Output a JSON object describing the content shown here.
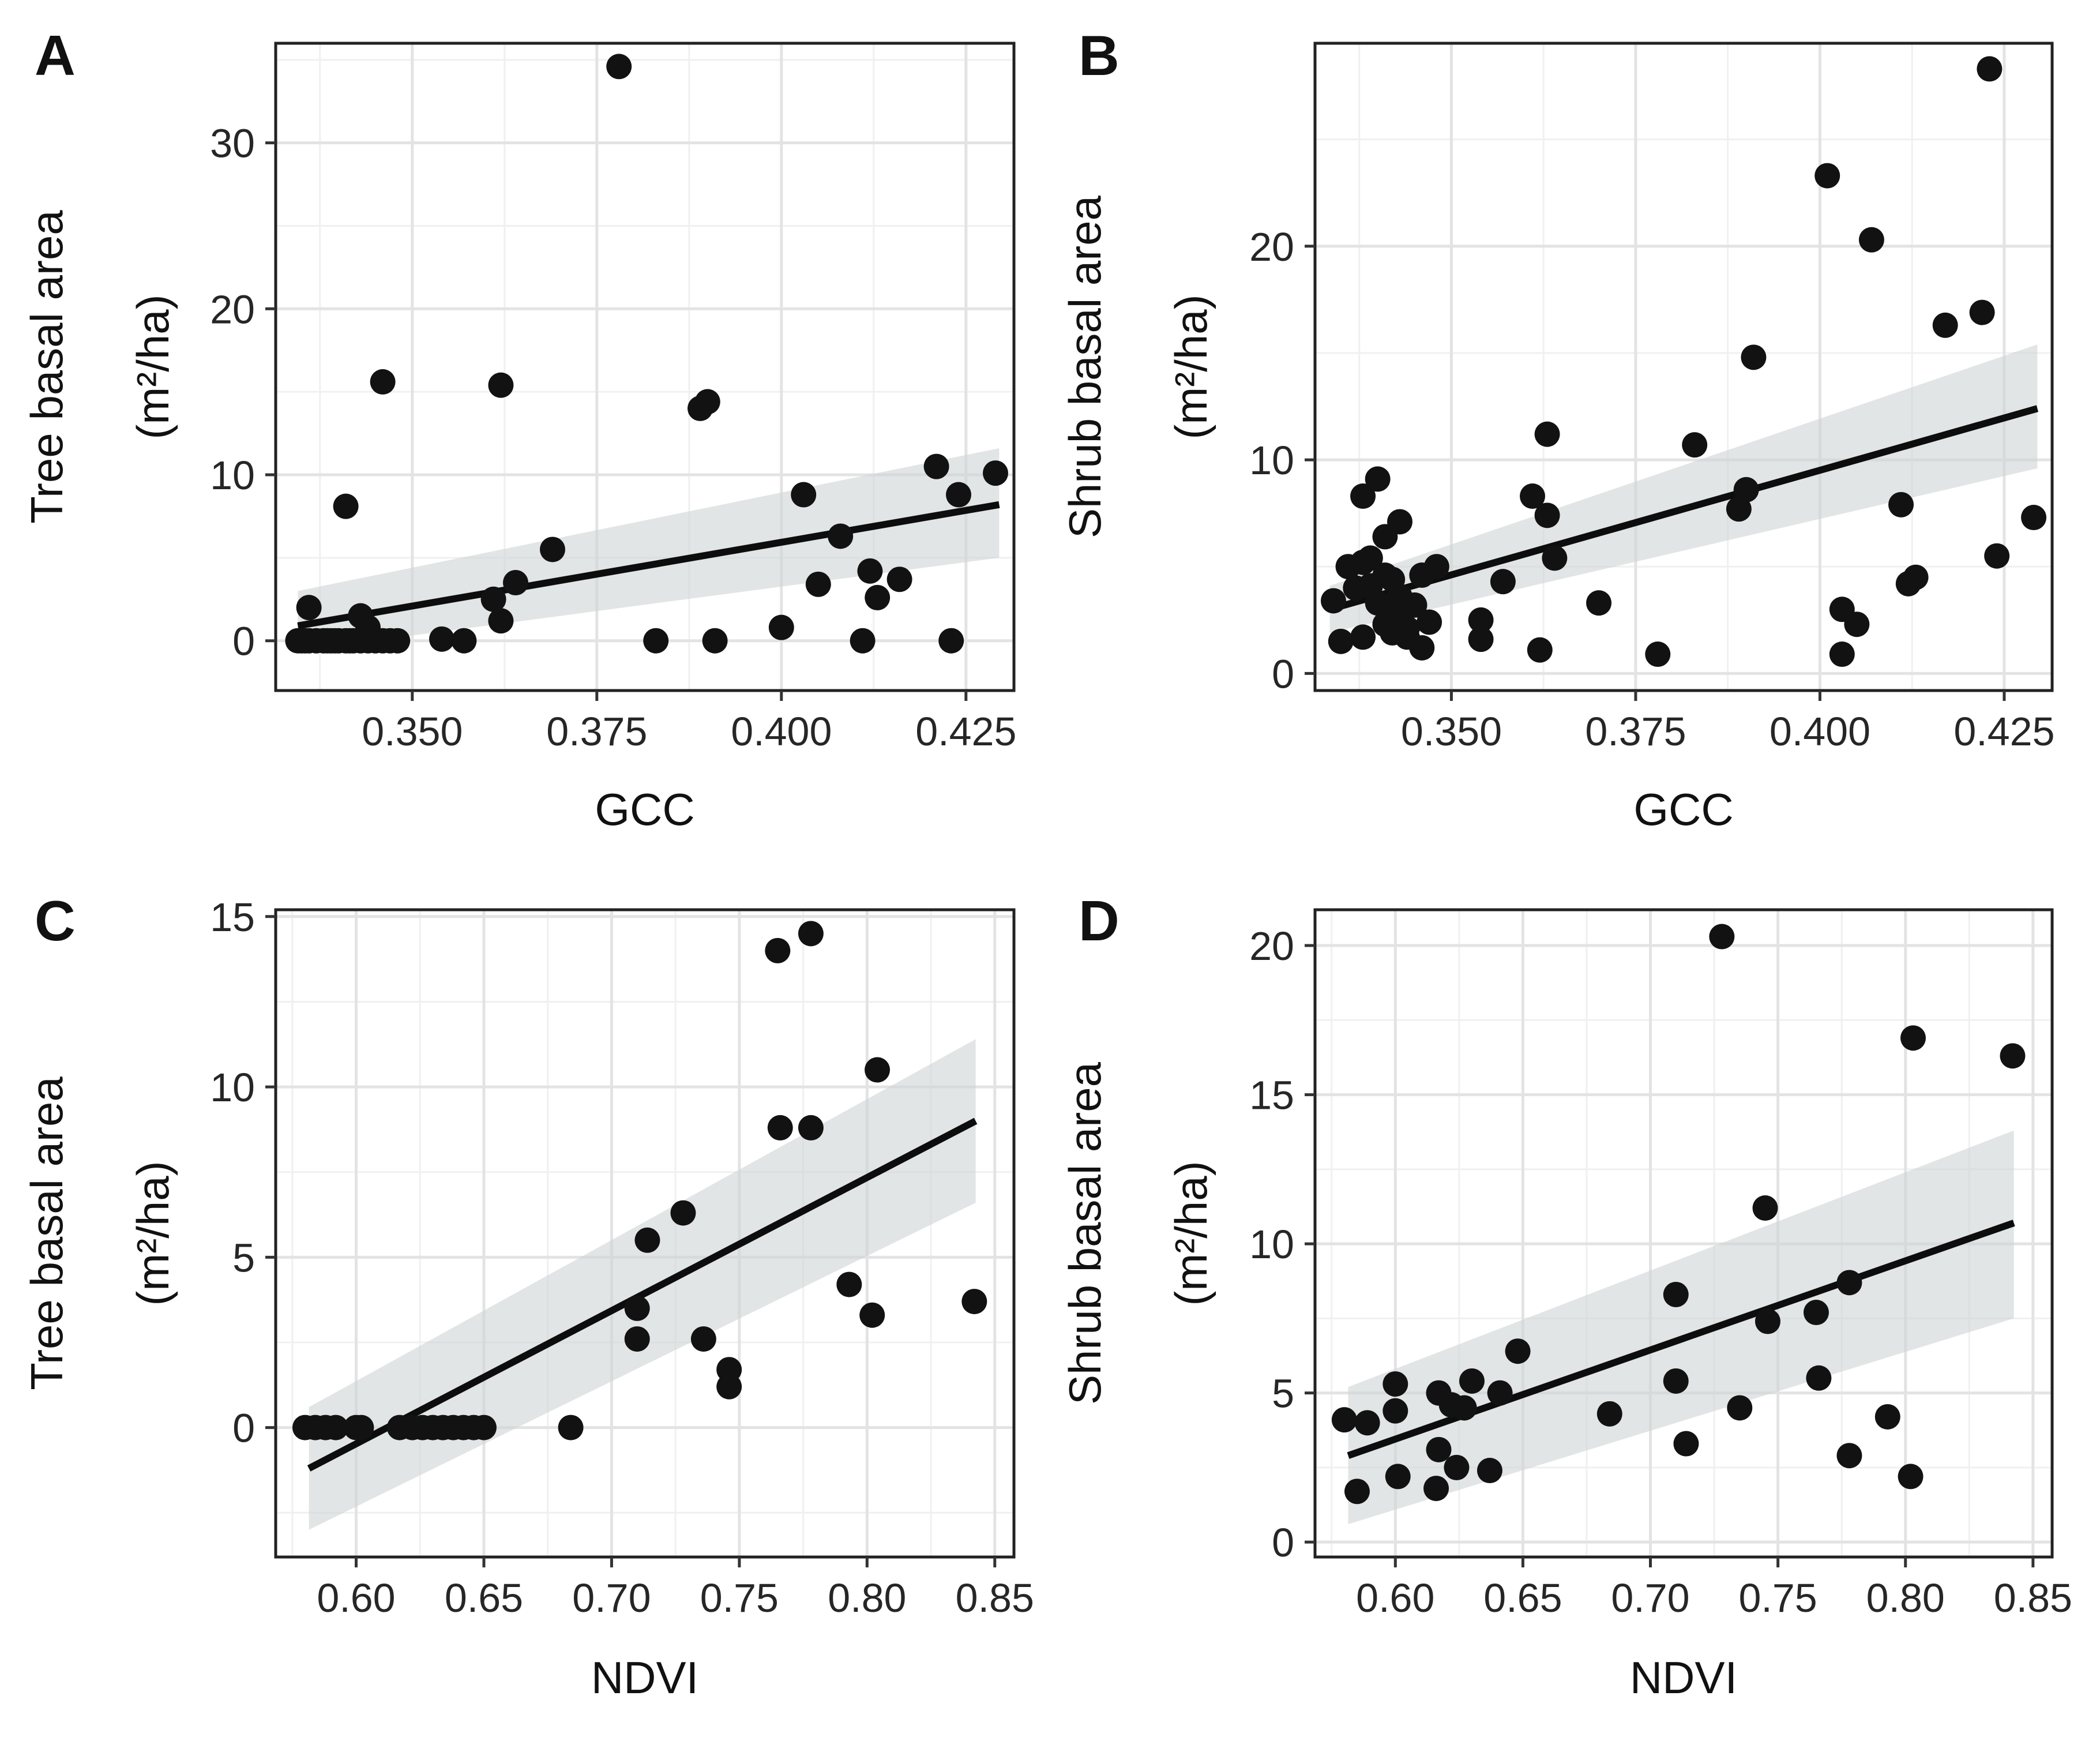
{
  "chart_data": [
    {
      "panel": "A",
      "type": "scatter",
      "xlabel": "GCC",
      "ylabel_line1": "Tree basal area",
      "ylabel_line2": "(m²/ha)",
      "xlim": [
        0.3315,
        0.4315
      ],
      "ylim": [
        -3,
        36
      ],
      "xticks": [
        0.35,
        0.375,
        0.4,
        0.425
      ],
      "xtick_labels": [
        "0.350",
        "0.375",
        "0.400",
        "0.425"
      ],
      "yticks": [
        0,
        10,
        20,
        30
      ],
      "ytick_labels": [
        "0",
        "10",
        "20",
        "30"
      ],
      "points": [
        [
          0.3345,
          0
        ],
        [
          0.335,
          0
        ],
        [
          0.3355,
          0
        ],
        [
          0.336,
          0
        ],
        [
          0.337,
          0
        ],
        [
          0.338,
          0
        ],
        [
          0.3385,
          0
        ],
        [
          0.339,
          0
        ],
        [
          0.3395,
          0
        ],
        [
          0.34,
          0
        ],
        [
          0.341,
          0
        ],
        [
          0.3415,
          0
        ],
        [
          0.342,
          0
        ],
        [
          0.343,
          0
        ],
        [
          0.344,
          0
        ],
        [
          0.345,
          0
        ],
        [
          0.346,
          0
        ],
        [
          0.347,
          0
        ],
        [
          0.348,
          0
        ],
        [
          0.336,
          2.0
        ],
        [
          0.341,
          8.1
        ],
        [
          0.343,
          1.5
        ],
        [
          0.344,
          0.8
        ],
        [
          0.346,
          15.6
        ],
        [
          0.354,
          0.1
        ],
        [
          0.357,
          0
        ],
        [
          0.361,
          2.5
        ],
        [
          0.362,
          1.2
        ],
        [
          0.362,
          15.4
        ],
        [
          0.364,
          3.5
        ],
        [
          0.369,
          5.5
        ],
        [
          0.378,
          34.6
        ],
        [
          0.383,
          0
        ],
        [
          0.389,
          14.0
        ],
        [
          0.39,
          14.4
        ],
        [
          0.391,
          0
        ],
        [
          0.4,
          0.8
        ],
        [
          0.403,
          8.8
        ],
        [
          0.405,
          3.4
        ],
        [
          0.408,
          6.3
        ],
        [
          0.411,
          0
        ],
        [
          0.412,
          4.2
        ],
        [
          0.413,
          2.6
        ],
        [
          0.416,
          3.7
        ],
        [
          0.421,
          10.5
        ],
        [
          0.423,
          0
        ],
        [
          0.424,
          8.8
        ],
        [
          0.429,
          10.1
        ]
      ],
      "fit": {
        "x": [
          0.3345,
          0.4295
        ],
        "y": [
          0.9,
          8.2
        ],
        "lower": [
          -0.6,
          5.0
        ],
        "upper": [
          3.0,
          11.6
        ]
      }
    },
    {
      "panel": "B",
      "type": "scatter",
      "xlabel": "GCC",
      "ylabel_line1": "Shrub basal area",
      "ylabel_line2": "(m²/ha)",
      "xlim": [
        0.3315,
        0.4315
      ],
      "ylim": [
        -0.8,
        29.5
      ],
      "xticks": [
        0.35,
        0.375,
        0.4,
        0.425
      ],
      "xtick_labels": [
        "0.350",
        "0.375",
        "0.400",
        "0.425"
      ],
      "yticks": [
        0,
        10,
        20
      ],
      "ytick_labels": [
        "0",
        "10",
        "20"
      ],
      "points": [
        [
          0.334,
          3.4
        ],
        [
          0.335,
          1.5
        ],
        [
          0.336,
          5.0
        ],
        [
          0.337,
          4.0
        ],
        [
          0.338,
          8.3
        ],
        [
          0.338,
          1.7
        ],
        [
          0.338,
          5.2
        ],
        [
          0.339,
          4.1
        ],
        [
          0.339,
          5.4
        ],
        [
          0.34,
          3.3
        ],
        [
          0.34,
          9.1
        ],
        [
          0.341,
          2.3
        ],
        [
          0.341,
          4.6
        ],
        [
          0.341,
          6.4
        ],
        [
          0.342,
          1.9
        ],
        [
          0.342,
          4.4
        ],
        [
          0.342,
          3.1
        ],
        [
          0.343,
          2.8
        ],
        [
          0.343,
          3.6
        ],
        [
          0.343,
          7.1
        ],
        [
          0.344,
          1.7
        ],
        [
          0.344,
          2.1
        ],
        [
          0.345,
          3.2
        ],
        [
          0.346,
          1.2
        ],
        [
          0.346,
          4.6
        ],
        [
          0.347,
          2.4
        ],
        [
          0.348,
          5.0
        ],
        [
          0.354,
          2.5
        ],
        [
          0.354,
          1.6
        ],
        [
          0.357,
          4.3
        ],
        [
          0.361,
          8.3
        ],
        [
          0.362,
          1.1
        ],
        [
          0.363,
          7.4
        ],
        [
          0.363,
          11.2
        ],
        [
          0.364,
          5.4
        ],
        [
          0.37,
          3.3
        ],
        [
          0.378,
          0.9
        ],
        [
          0.383,
          10.7
        ],
        [
          0.389,
          7.7
        ],
        [
          0.39,
          8.6
        ],
        [
          0.391,
          14.8
        ],
        [
          0.401,
          23.3
        ],
        [
          0.403,
          3.0
        ],
        [
          0.403,
          0.9
        ],
        [
          0.405,
          2.3
        ],
        [
          0.407,
          20.3
        ],
        [
          0.411,
          7.9
        ],
        [
          0.412,
          4.2
        ],
        [
          0.413,
          4.5
        ],
        [
          0.417,
          16.3
        ],
        [
          0.422,
          16.9
        ],
        [
          0.424,
          5.5
        ],
        [
          0.423,
          28.3
        ],
        [
          0.429,
          7.3
        ]
      ],
      "fit": {
        "x": [
          0.3335,
          0.4295
        ],
        "y": [
          3.0,
          12.4
        ],
        "lower": [
          1.9,
          9.6
        ],
        "upper": [
          4.1,
          15.4
        ]
      }
    },
    {
      "panel": "C",
      "type": "scatter",
      "xlabel": "NDVI",
      "ylabel_line1": "Tree basal area",
      "ylabel_line2": "(m²/ha)",
      "xlim": [
        0.5685,
        0.8575
      ],
      "ylim": [
        -3.8,
        15.2
      ],
      "xticks": [
        0.6,
        0.65,
        0.7,
        0.75,
        0.8,
        0.85
      ],
      "xtick_labels": [
        "0.60",
        "0.65",
        "0.70",
        "0.75",
        "0.80",
        "0.85"
      ],
      "yticks": [
        0,
        5,
        10,
        15
      ],
      "ytick_labels": [
        "0",
        "5",
        "10",
        "15"
      ],
      "points": [
        [
          0.58,
          0
        ],
        [
          0.584,
          0
        ],
        [
          0.588,
          0
        ],
        [
          0.592,
          0
        ],
        [
          0.6,
          0
        ],
        [
          0.602,
          0
        ],
        [
          0.617,
          0
        ],
        [
          0.622,
          0
        ],
        [
          0.626,
          0
        ],
        [
          0.63,
          0
        ],
        [
          0.634,
          0
        ],
        [
          0.638,
          0
        ],
        [
          0.642,
          0
        ],
        [
          0.646,
          0
        ],
        [
          0.65,
          0
        ],
        [
          0.684,
          0
        ],
        [
          0.71,
          3.5
        ],
        [
          0.71,
          2.6
        ],
        [
          0.714,
          5.5
        ],
        [
          0.728,
          6.3
        ],
        [
          0.736,
          2.6
        ],
        [
          0.746,
          1.7
        ],
        [
          0.746,
          1.2
        ],
        [
          0.765,
          14.0
        ],
        [
          0.766,
          8.8
        ],
        [
          0.778,
          14.5
        ],
        [
          0.778,
          8.8
        ],
        [
          0.793,
          4.2
        ],
        [
          0.802,
          3.3
        ],
        [
          0.804,
          10.5
        ],
        [
          0.842,
          3.7
        ]
      ],
      "fit": {
        "x": [
          0.5815,
          0.8425
        ],
        "y": [
          -1.2,
          9.0
        ],
        "lower": [
          -3.0,
          6.6
        ],
        "upper": [
          0.6,
          11.4
        ]
      }
    },
    {
      "panel": "D",
      "type": "scatter",
      "xlabel": "NDVI",
      "ylabel_line1": "Shrub basal area",
      "ylabel_line2": "(m²/ha)",
      "xlim": [
        0.5685,
        0.8575
      ],
      "ylim": [
        -0.5,
        21.2
      ],
      "xticks": [
        0.6,
        0.65,
        0.7,
        0.75,
        0.8,
        0.85
      ],
      "xtick_labels": [
        "0.60",
        "0.65",
        "0.70",
        "0.75",
        "0.80",
        "0.85"
      ],
      "yticks": [
        0,
        5,
        10,
        15,
        20
      ],
      "ytick_labels": [
        "0",
        "5",
        "10",
        "15",
        "20"
      ],
      "points": [
        [
          0.58,
          4.1
        ],
        [
          0.585,
          1.7
        ],
        [
          0.589,
          4.0
        ],
        [
          0.6,
          5.3
        ],
        [
          0.6,
          4.4
        ],
        [
          0.601,
          2.2
        ],
        [
          0.616,
          1.8
        ],
        [
          0.617,
          3.1
        ],
        [
          0.617,
          5.0
        ],
        [
          0.622,
          4.6
        ],
        [
          0.624,
          2.5
        ],
        [
          0.627,
          4.5
        ],
        [
          0.63,
          5.4
        ],
        [
          0.637,
          2.4
        ],
        [
          0.641,
          5.0
        ],
        [
          0.648,
          6.4
        ],
        [
          0.684,
          4.3
        ],
        [
          0.71,
          8.3
        ],
        [
          0.71,
          5.4
        ],
        [
          0.714,
          3.3
        ],
        [
          0.728,
          20.3
        ],
        [
          0.735,
          4.5
        ],
        [
          0.745,
          11.2
        ],
        [
          0.746,
          7.4
        ],
        [
          0.765,
          7.7
        ],
        [
          0.766,
          5.5
        ],
        [
          0.778,
          2.9
        ],
        [
          0.778,
          8.7
        ],
        [
          0.793,
          4.2
        ],
        [
          0.802,
          2.2
        ],
        [
          0.803,
          16.9
        ],
        [
          0.842,
          16.3
        ]
      ],
      "fit": {
        "x": [
          0.5815,
          0.8425
        ],
        "y": [
          2.9,
          10.7
        ],
        "lower": [
          0.6,
          7.5
        ],
        "upper": [
          5.2,
          13.8
        ]
      }
    }
  ]
}
